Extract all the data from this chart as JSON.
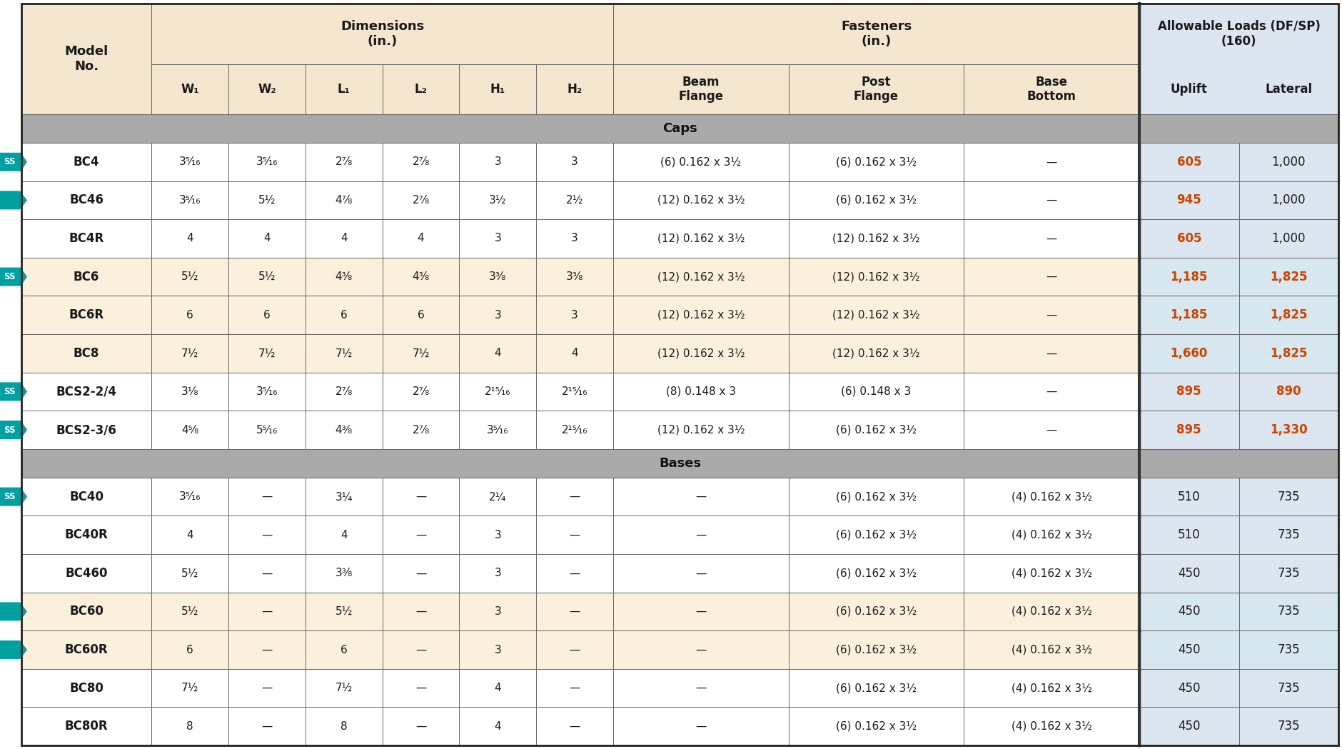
{
  "header_bg": "#F5E6D0",
  "header_blue": "#DCE6F0",
  "section_bg": "#AAAAAA",
  "teal_color": "#00A0A0",
  "orange_color": "#CC4400",
  "dark_text": "#1a1a1a",
  "peach_row": "#FAF0DC",
  "white_row": "#FFFFFF",
  "border_color": "#666666",
  "caps_rows": [
    {
      "model": "BC4",
      "ss": true,
      "arrow": false,
      "bg": "white",
      "w1": "3⁵⁄₁₆",
      "w2": "3⁵⁄₁₆",
      "l1": "2⁷⁄₈",
      "l2": "2⁷⁄₈",
      "h1": "3",
      "h2": "3",
      "beam": "(6) 0.162 x 3½",
      "post": "(6) 0.162 x 3½",
      "base": "—",
      "uplift": "605",
      "lateral": "1,000",
      "uplift_orange": true,
      "lateral_orange": false
    },
    {
      "model": "BC46",
      "ss": false,
      "arrow": true,
      "bg": "white",
      "w1": "3⁵⁄₁₆",
      "w2": "5½",
      "l1": "4⁷⁄₈",
      "l2": "2⁷⁄₈",
      "h1": "3½",
      "h2": "2½",
      "beam": "(12) 0.162 x 3½",
      "post": "(6) 0.162 x 3½",
      "base": "—",
      "uplift": "945",
      "lateral": "1,000",
      "uplift_orange": true,
      "lateral_orange": false
    },
    {
      "model": "BC4R",
      "ss": false,
      "arrow": false,
      "bg": "white",
      "w1": "4",
      "w2": "4",
      "l1": "4",
      "l2": "4",
      "h1": "3",
      "h2": "3",
      "beam": "(12) 0.162 x 3½",
      "post": "(12) 0.162 x 3½",
      "base": "—",
      "uplift": "605",
      "lateral": "1,000",
      "uplift_orange": true,
      "lateral_orange": false
    },
    {
      "model": "BC6",
      "ss": true,
      "arrow": false,
      "bg": "peach",
      "w1": "5½",
      "w2": "5½",
      "l1": "4³⁄₈",
      "l2": "4³⁄₈",
      "h1": "3³⁄₈",
      "h2": "3³⁄₈",
      "beam": "(12) 0.162 x 3½",
      "post": "(12) 0.162 x 3½",
      "base": "—",
      "uplift": "1,185",
      "lateral": "1,825",
      "uplift_orange": true,
      "lateral_orange": true
    },
    {
      "model": "BC6R",
      "ss": false,
      "arrow": false,
      "bg": "peach",
      "w1": "6",
      "w2": "6",
      "l1": "6",
      "l2": "6",
      "h1": "3",
      "h2": "3",
      "beam": "(12) 0.162 x 3½",
      "post": "(12) 0.162 x 3½",
      "base": "—",
      "uplift": "1,185",
      "lateral": "1,825",
      "uplift_orange": true,
      "lateral_orange": true
    },
    {
      "model": "BC8",
      "ss": false,
      "arrow": false,
      "bg": "peach",
      "w1": "7½",
      "w2": "7½",
      "l1": "7½",
      "l2": "7½",
      "h1": "4",
      "h2": "4",
      "beam": "(12) 0.162 x 3½",
      "post": "(12) 0.162 x 3½",
      "base": "—",
      "uplift": "1,660",
      "lateral": "1,825",
      "uplift_orange": true,
      "lateral_orange": true
    },
    {
      "model": "BCS2-2/4",
      "ss": true,
      "arrow": false,
      "bg": "white",
      "w1": "3¹⁄₈",
      "w2": "3⁵⁄₁₆",
      "l1": "2⁷⁄₈",
      "l2": "2⁷⁄₈",
      "h1": "2¹⁵⁄₁₆",
      "h2": "2¹⁵⁄₁₆",
      "beam": "(8) 0.148 x 3",
      "post": "(6) 0.148 x 3",
      "base": "—",
      "uplift": "895",
      "lateral": "890",
      "uplift_orange": true,
      "lateral_orange": true
    },
    {
      "model": "BCS2-3/6",
      "ss": true,
      "arrow": false,
      "bg": "white",
      "w1": "4⁵⁄₈",
      "w2": "5⁵⁄₁₆",
      "l1": "4³⁄₈",
      "l2": "2⁷⁄₈",
      "h1": "3⁵⁄₁₆",
      "h2": "2¹⁵⁄₁₆",
      "beam": "(12) 0.162 x 3½",
      "post": "(6) 0.162 x 3½",
      "base": "—",
      "uplift": "895",
      "lateral": "1,330",
      "uplift_orange": true,
      "lateral_orange": true
    }
  ],
  "bases_rows": [
    {
      "model": "BC40",
      "ss": true,
      "arrow": false,
      "bg": "white",
      "w1": "3⁵⁄₁₆",
      "w2": "—",
      "l1": "3¼",
      "l2": "—",
      "h1": "2¼",
      "h2": "—",
      "beam": "—",
      "post": "(6) 0.162 x 3½",
      "base": "(4) 0.162 x 3½",
      "uplift": "510",
      "lateral": "735",
      "uplift_orange": false,
      "lateral_orange": false
    },
    {
      "model": "BC40R",
      "ss": false,
      "arrow": false,
      "bg": "white",
      "w1": "4",
      "w2": "—",
      "l1": "4",
      "l2": "—",
      "h1": "3",
      "h2": "—",
      "beam": "—",
      "post": "(6) 0.162 x 3½",
      "base": "(4) 0.162 x 3½",
      "uplift": "510",
      "lateral": "735",
      "uplift_orange": false,
      "lateral_orange": false
    },
    {
      "model": "BC460",
      "ss": false,
      "arrow": false,
      "bg": "white",
      "w1": "5½",
      "w2": "—",
      "l1": "3³⁄₈",
      "l2": "—",
      "h1": "3",
      "h2": "—",
      "beam": "—",
      "post": "(6) 0.162 x 3½",
      "base": "(4) 0.162 x 3½",
      "uplift": "450",
      "lateral": "735",
      "uplift_orange": false,
      "lateral_orange": false
    },
    {
      "model": "BC60",
      "ss": false,
      "arrow": true,
      "bg": "peach",
      "w1": "5½",
      "w2": "—",
      "l1": "5½",
      "l2": "—",
      "h1": "3",
      "h2": "—",
      "beam": "—",
      "post": "(6) 0.162 x 3½",
      "base": "(4) 0.162 x 3½",
      "uplift": "450",
      "lateral": "735",
      "uplift_orange": false,
      "lateral_orange": false
    },
    {
      "model": "BC60R",
      "ss": false,
      "arrow": true,
      "bg": "peach",
      "w1": "6",
      "w2": "—",
      "l1": "6",
      "l2": "—",
      "h1": "3",
      "h2": "—",
      "beam": "—",
      "post": "(6) 0.162 x 3½",
      "base": "(4) 0.162 x 3½",
      "uplift": "450",
      "lateral": "735",
      "uplift_orange": false,
      "lateral_orange": false
    },
    {
      "model": "BC80",
      "ss": false,
      "arrow": false,
      "bg": "white",
      "w1": "7½",
      "w2": "—",
      "l1": "7½",
      "l2": "—",
      "h1": "4",
      "h2": "—",
      "beam": "—",
      "post": "(6) 0.162 x 3½",
      "base": "(4) 0.162 x 3½",
      "uplift": "450",
      "lateral": "735",
      "uplift_orange": false,
      "lateral_orange": false
    },
    {
      "model": "BC80R",
      "ss": false,
      "arrow": false,
      "bg": "white",
      "w1": "8",
      "w2": "—",
      "l1": "8",
      "l2": "—",
      "h1": "4",
      "h2": "—",
      "beam": "—",
      "post": "(6) 0.162 x 3½",
      "base": "(4) 0.162 x 3½",
      "uplift": "450",
      "lateral": "735",
      "uplift_orange": false,
      "lateral_orange": false
    }
  ]
}
